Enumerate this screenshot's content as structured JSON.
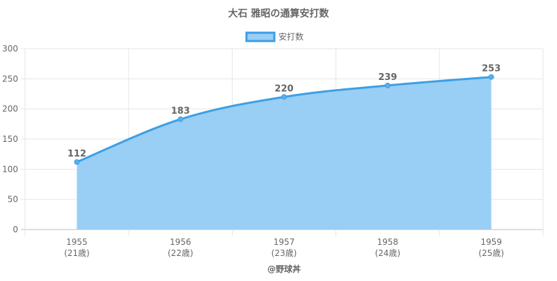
{
  "chart_data": {
    "type": "area",
    "title": "大石 雅昭の通算安打数",
    "categories": [
      "1955",
      "1956",
      "1957",
      "1958",
      "1959"
    ],
    "category_sublabels": [
      "(21歳)",
      "(22歳)",
      "(23歳)",
      "(24歳)",
      "(25歳)"
    ],
    "series": [
      {
        "name": "安打数",
        "values": [
          112,
          183,
          220,
          239,
          253
        ]
      }
    ],
    "y_ticks": [
      0,
      50,
      100,
      150,
      200,
      250,
      300
    ],
    "ylim": [
      0,
      300
    ],
    "grid": true,
    "legend_position": "top-center",
    "data_labels": true,
    "colors": {
      "line": "#3b9fe6",
      "fill": "#99cef5",
      "point": "#5aaeea"
    },
    "credit": "@野球丼"
  }
}
